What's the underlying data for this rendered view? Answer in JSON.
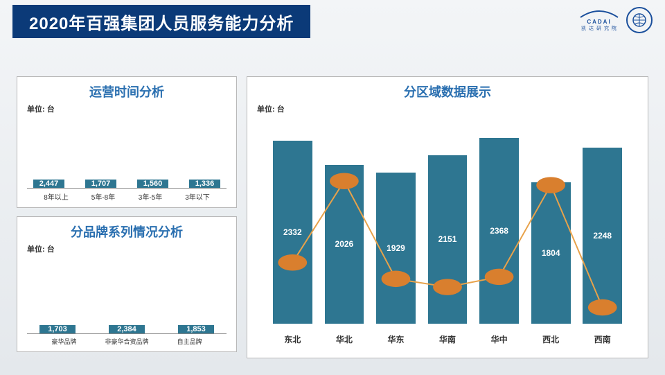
{
  "theme": {
    "header_bg": "#0b3a78",
    "header_text": "#ffffff",
    "page_bg_top": "#f3f5f7",
    "page_bg_bottom": "#e4e8ec",
    "panel_border": "#b8b8b8",
    "title_color": "#2a6fb0",
    "bar_color": "#2e7691",
    "line_color": "#e8a24a",
    "marker_color": "#d97f2e",
    "text_dark": "#333333",
    "logo_blue": "#1a4f9c"
  },
  "page_title": "2020年百强集团人员服务能力分析",
  "logos": {
    "cadai_text": "CADAI",
    "cadai_sub": "凯 达 研 究 院"
  },
  "unit_label": "单位: 台",
  "chart1": {
    "title": "运营时间分析",
    "type": "bar",
    "categories": [
      "8年以上",
      "5年-8年",
      "3年-5年",
      "3年以下"
    ],
    "values": [
      2447,
      1707,
      1560,
      1336
    ],
    "ymax": 2800,
    "bar_gap_pct": 10,
    "label_fontsize": 10
  },
  "chart2": {
    "title": "分品牌系列情况分析",
    "type": "bar",
    "categories": [
      "豪华品牌",
      "非豪华合资品牌",
      "自主品牌"
    ],
    "values": [
      1703,
      2384,
      1853
    ],
    "ymax": 2800,
    "bar_gap_pct": 16,
    "label_fontsize": 9
  },
  "chart3": {
    "title": "分区域数据展示",
    "type": "bar+line",
    "categories": [
      "东北",
      "华北",
      "华东",
      "华南",
      "华中",
      "西北",
      "西南"
    ],
    "bar_values": [
      2332,
      2026,
      1929,
      2151,
      2368,
      1804,
      2248
    ],
    "bar_ymax": 2600,
    "line_values_rel": [
      0.7,
      0.3,
      0.78,
      0.82,
      0.77,
      0.32,
      0.92
    ],
    "line_width": 2,
    "marker_radius": 4
  }
}
